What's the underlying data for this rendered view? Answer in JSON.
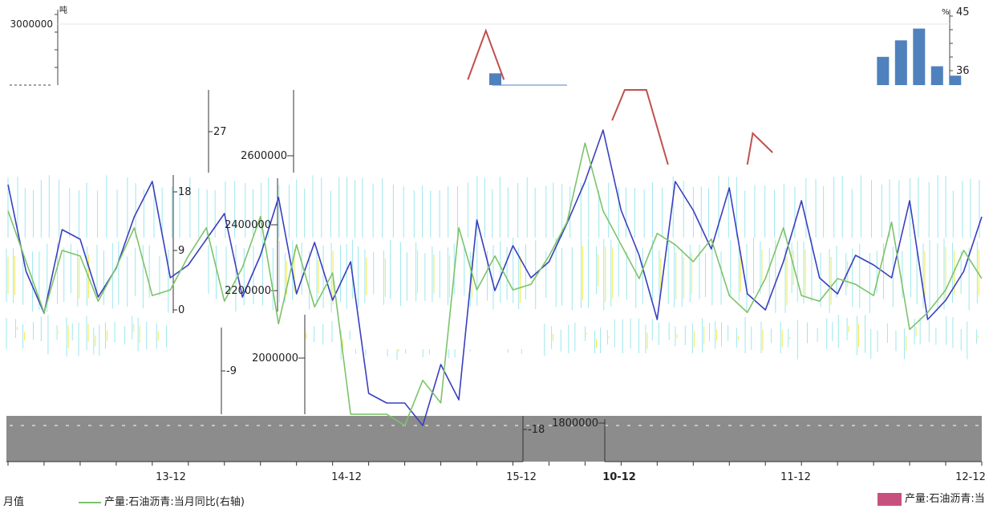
{
  "chart_data": [
    {
      "type": "bar",
      "panel": "top-strip",
      "left_unit": "吨",
      "right_unit": "%",
      "left_ticks": [
        "3000000"
      ],
      "right_ticks": [
        "45",
        "36"
      ],
      "left_range": [
        2800000,
        3100000
      ],
      "right_range": [
        33,
        46
      ],
      "bars_x": [
        27,
        48.5,
        49.5,
        50.5,
        51.5,
        52.5
      ],
      "bars_value": [
        2850000,
        2920000,
        2990000,
        3040000,
        2880000,
        2840000
      ],
      "line_x": [
        25.5,
        26.5,
        27.5
      ],
      "line_value": [
        34,
        43,
        34
      ]
    },
    {
      "type": "line",
      "panel": "main",
      "left_ticks": [
        "2600000",
        "2400000",
        "2200000",
        "2000000",
        "1800000"
      ],
      "left_range": [
        1800000,
        2750000
      ],
      "right_ticks": [
        "27",
        "18",
        "9",
        "0",
        "-9",
        "-18"
      ],
      "right_range": [
        -18,
        36
      ],
      "x_ticks": [
        "13-12",
        "14-12",
        "15-12",
        "10-12",
        "11-12",
        "12-12"
      ],
      "series": [
        {
          "name": "产量:石油沥青:当月值",
          "x": [
            0,
            1,
            2,
            3,
            4,
            5,
            6,
            7,
            8,
            9,
            10,
            11,
            12,
            13,
            14,
            15,
            16,
            17,
            18,
            19,
            20,
            21,
            22,
            23,
            24,
            25,
            26,
            27,
            28,
            29,
            30,
            31,
            32,
            33,
            34,
            35,
            36,
            37,
            38,
            39,
            40,
            41,
            42,
            43,
            44,
            45,
            46,
            47,
            48,
            49,
            50,
            51,
            52,
            53,
            54
          ],
          "values": [
            2550000,
            2280000,
            2150000,
            2410000,
            2380000,
            2200000,
            2290000,
            2450000,
            2560000,
            2260000,
            2300000,
            2380000,
            2460000,
            2200000,
            2330000,
            2510000,
            2210000,
            2370000,
            2190000,
            2310000,
            1900000,
            1870000,
            1870000,
            1800000,
            1990000,
            1880000,
            2440000,
            2220000,
            2360000,
            2260000,
            2310000,
            2430000,
            2560000,
            2720000,
            2470000,
            2330000,
            2130000,
            2560000,
            2470000,
            2350000,
            2540000,
            2210000,
            2160000,
            2310000,
            2500000,
            2260000,
            2210000,
            2330000,
            2300000,
            2260000,
            2500000,
            2130000,
            2190000,
            2280000,
            2450000
          ]
        },
        {
          "name": "产量:石油沥青:当月同比(右轴)",
          "x": [
            0,
            2,
            3,
            4,
            5,
            6,
            7,
            8,
            9,
            10,
            11,
            12,
            13,
            14,
            15,
            16,
            17,
            18,
            19,
            20,
            21,
            22,
            23,
            24,
            25,
            26,
            27,
            28,
            29,
            30,
            31,
            32,
            33,
            34,
            35,
            36,
            37,
            38,
            39,
            40,
            41,
            42,
            43,
            44,
            45,
            46,
            47,
            48,
            49,
            50,
            51,
            52,
            53,
            54
          ],
          "values": [
            20,
            2,
            13,
            12,
            4,
            10,
            17,
            5,
            6,
            12,
            17,
            4,
            10,
            19,
            0,
            14,
            3,
            9,
            -16,
            -16,
            -16,
            -18,
            -10,
            -14,
            17,
            6,
            12,
            6,
            7,
            12,
            18,
            32,
            20,
            14,
            8,
            16,
            14,
            11,
            15,
            5,
            2,
            8,
            17,
            5,
            4,
            8,
            7,
            5,
            18,
            -1,
            2,
            6,
            13,
            8
          ]
        }
      ]
    }
  ],
  "legend": {
    "item1": "月值",
    "item2": "产量:石油沥青:当月同比(右轴)",
    "item3": "产量:石油沥青:当"
  },
  "colors": {
    "monthly_line": "#3a3fbf",
    "yoy_line": "#7bc46a",
    "red_line": "#c0504d",
    "bar": "#4f81bd",
    "grey_band": "#8c8c8c",
    "cyan_noise": "#9be7ee",
    "yellow_noise": "#f0e84a",
    "legend_box": "#c8507e"
  }
}
